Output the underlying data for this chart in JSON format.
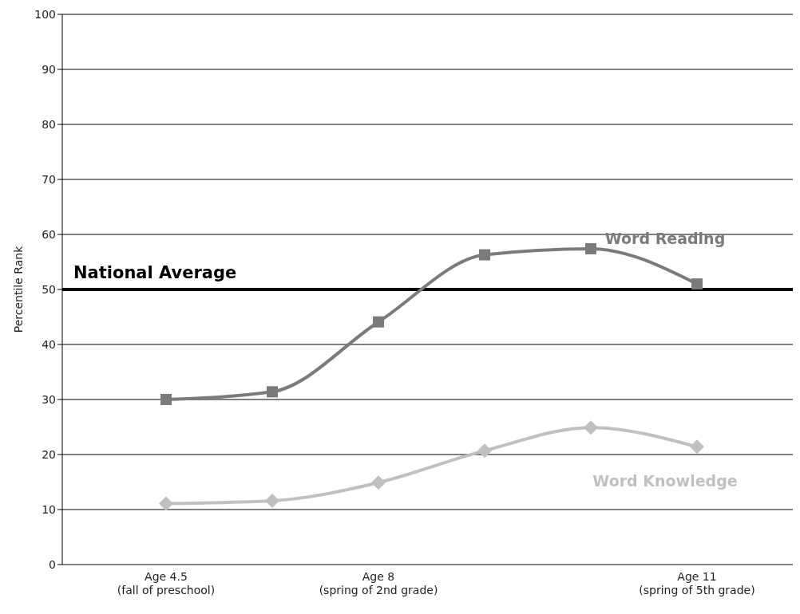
{
  "chart_data": {
    "type": "line",
    "ylabel": "Percentile Rank",
    "categories": [
      "Age 4.5\n(fall of preschool)",
      null,
      "Age 8\n(spring of 2nd grade)",
      null,
      null,
      "Age 11\n(spring of 5th grade)"
    ],
    "ylim": [
      0,
      100
    ],
    "yticks": [
      0,
      10,
      20,
      30,
      40,
      50,
      60,
      70,
      80,
      90,
      100
    ],
    "grid": "y",
    "legend": false,
    "line_style": "solid",
    "series": [
      {
        "name": "Word Reading",
        "color": "#7b7b7b",
        "marker": "square",
        "values": [
          30,
          31.4,
          44.1,
          56.3,
          57.4,
          51
        ]
      },
      {
        "name": "Word Knowledge",
        "color": "#c0c0c0",
        "marker": "diamond",
        "values": [
          11.1,
          11.6,
          14.9,
          20.7,
          24.9,
          21.4
        ]
      }
    ],
    "ref_lines": [
      {
        "axis": "y",
        "value": 50,
        "label": "National Average",
        "color": "#000000"
      }
    ]
  }
}
